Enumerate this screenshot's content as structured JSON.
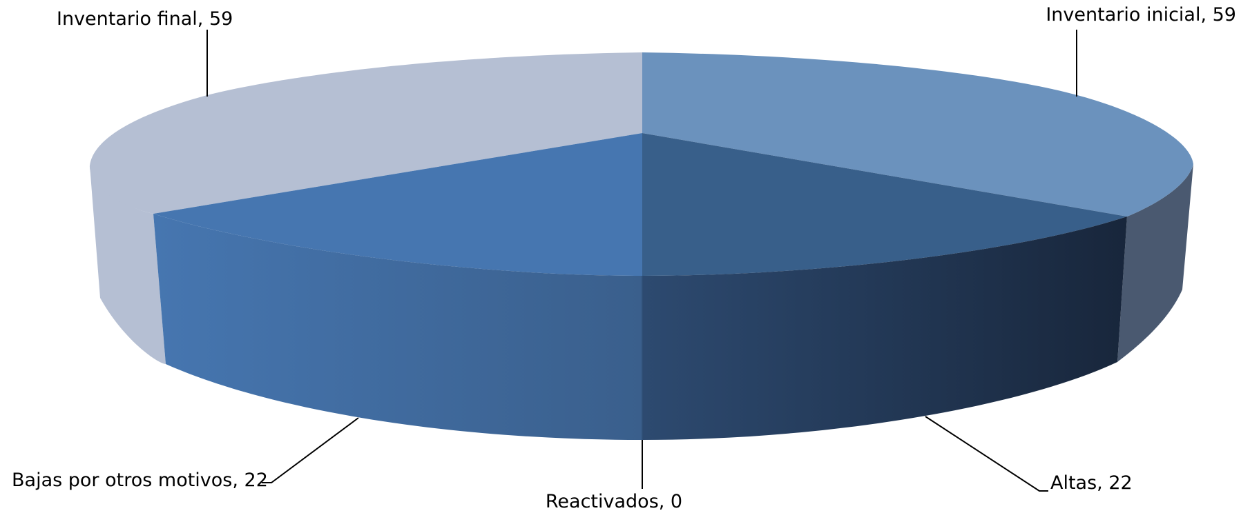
{
  "chart_data": {
    "type": "pie",
    "title": "",
    "slices": [
      {
        "label": "Inventario inicial",
        "value": 59,
        "color": "#6b92bd"
      },
      {
        "label": "Altas",
        "value": 22,
        "color": "#385f8a"
      },
      {
        "label": "Reactivados",
        "value": 0,
        "color": "#3f6fa8"
      },
      {
        "label": "Bajas por otros motivos",
        "value": 22,
        "color": "#4676b0"
      },
      {
        "label": "Inventario final",
        "value": 59,
        "color": "#b5bfd3"
      }
    ],
    "data_labels": [
      "Inventario inicial, 59",
      "Altas, 22",
      "Reactivados, 0",
      "Bajas por otros motivos, 22",
      "Inventario final, 59"
    ],
    "style": "3d"
  }
}
